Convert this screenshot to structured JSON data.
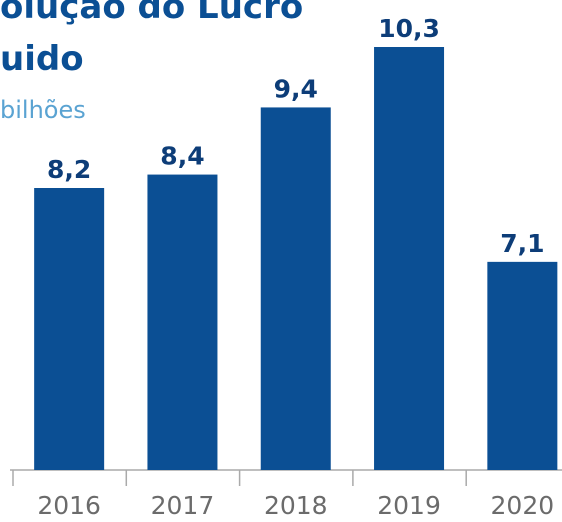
{
  "chart_data": {
    "type": "bar",
    "title_lines": [
      "olução do Lucro",
      "uido"
    ],
    "subtitle": "bilhões",
    "categories": [
      "2016",
      "2017",
      "2018",
      "2019",
      "2020"
    ],
    "values": [
      8.2,
      8.4,
      9.4,
      10.3,
      7.1
    ],
    "value_labels": [
      "8,2",
      "8,4",
      "9,4",
      "10,3",
      "7,1"
    ],
    "color": "#0b4f94",
    "ylim": [
      4,
      11
    ]
  }
}
